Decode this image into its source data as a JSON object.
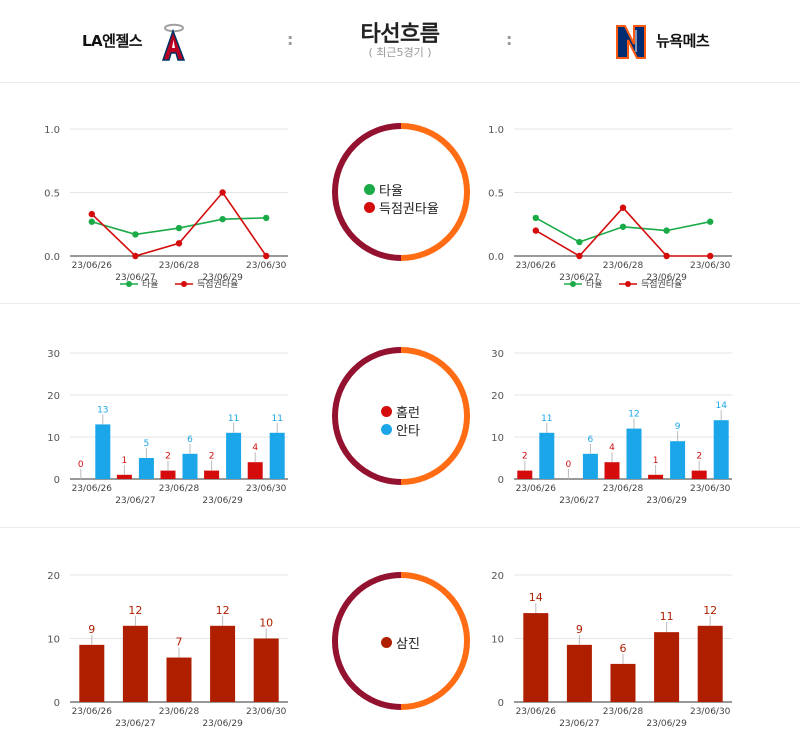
{
  "header": {
    "title": "타선흐름",
    "subtitle": "( 최근5경기 )",
    "home_team": "LA엔젤스",
    "away_team": "뉴욕메츠",
    "separator": ":"
  },
  "colors": {
    "green": "#1aab48",
    "red": "#d40c0c",
    "blue": "#1aa6e8",
    "dark_red": "#b01e00",
    "ring_left": "#931230",
    "ring_right": "#ff6c14",
    "grid": "#e6e6e6"
  },
  "center": {
    "batting": [
      "타율",
      "득점권타율"
    ],
    "power": [
      "홈런",
      "안타"
    ],
    "strikeout": [
      "삼진"
    ]
  },
  "chart_data": [
    {
      "id": "angels-batting",
      "type": "line",
      "categories": [
        "23/06/26",
        "23/06/27",
        "23/06/28",
        "23/06/29",
        "23/06/30"
      ],
      "ylim": [
        0,
        1
      ],
      "yticks": [
        "0.0",
        "0.5",
        "1.0"
      ],
      "legend": "bottom",
      "series": [
        {
          "name": "타율",
          "color": "#1aab48",
          "values": [
            0.27,
            0.17,
            0.22,
            0.29,
            0.3
          ]
        },
        {
          "name": "득점권타율",
          "color": "#d40c0c",
          "values": [
            0.33,
            0.0,
            0.1,
            0.5,
            0.0
          ]
        }
      ]
    },
    {
      "id": "mets-batting",
      "type": "line",
      "categories": [
        "23/06/26",
        "23/06/27",
        "23/06/28",
        "23/06/29",
        "23/06/30"
      ],
      "ylim": [
        0,
        1
      ],
      "yticks": [
        "0.0",
        "0.5",
        "1.0"
      ],
      "legend": "bottom",
      "series": [
        {
          "name": "타율",
          "color": "#1aab48",
          "values": [
            0.3,
            0.11,
            0.23,
            0.2,
            0.27
          ]
        },
        {
          "name": "득점권타율",
          "color": "#d40c0c",
          "values": [
            0.2,
            0.0,
            0.38,
            0.0,
            0.0
          ]
        }
      ]
    },
    {
      "id": "angels-power",
      "type": "bar",
      "categories": [
        "23/06/26",
        "23/06/27",
        "23/06/28",
        "23/06/29",
        "23/06/30"
      ],
      "ylim": [
        0,
        30
      ],
      "yticks": [
        "0",
        "10",
        "20",
        "30"
      ],
      "series": [
        {
          "name": "홈런",
          "color": "#d40c0c",
          "values": [
            0,
            1,
            2,
            2,
            4
          ]
        },
        {
          "name": "안타",
          "color": "#1aa6e8",
          "values": [
            13,
            5,
            6,
            11,
            11
          ]
        }
      ]
    },
    {
      "id": "mets-power",
      "type": "bar",
      "categories": [
        "23/06/26",
        "23/06/27",
        "23/06/28",
        "23/06/29",
        "23/06/30"
      ],
      "ylim": [
        0,
        30
      ],
      "yticks": [
        "0",
        "10",
        "20",
        "30"
      ],
      "series": [
        {
          "name": "홈런",
          "color": "#d40c0c",
          "values": [
            2,
            0,
            4,
            1,
            2
          ]
        },
        {
          "name": "안타",
          "color": "#1aa6e8",
          "values": [
            11,
            6,
            12,
            9,
            14
          ]
        }
      ]
    },
    {
      "id": "angels-strikeout",
      "type": "bar",
      "categories": [
        "23/06/26",
        "23/06/27",
        "23/06/28",
        "23/06/29",
        "23/06/30"
      ],
      "ylim": [
        0,
        20
      ],
      "yticks": [
        "0",
        "10",
        "20"
      ],
      "series": [
        {
          "name": "삼진",
          "color": "#b01e00",
          "values": [
            9,
            12,
            7,
            12,
            10
          ]
        }
      ]
    },
    {
      "id": "mets-strikeout",
      "type": "bar",
      "categories": [
        "23/06/26",
        "23/06/27",
        "23/06/28",
        "23/06/29",
        "23/06/30"
      ],
      "ylim": [
        0,
        20
      ],
      "yticks": [
        "0",
        "10",
        "20"
      ],
      "series": [
        {
          "name": "삼진",
          "color": "#b01e00",
          "values": [
            14,
            9,
            6,
            11,
            12
          ]
        }
      ]
    }
  ]
}
